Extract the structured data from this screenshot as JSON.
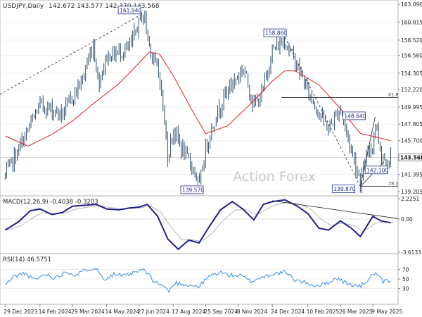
{
  "chart_data": [
    {
      "type": "candlestick",
      "title": "USDJPY,Daily",
      "symbol": "USDJPY",
      "timeframe": "Daily",
      "ohlc": {
        "open": 142.672,
        "high": 143.577,
        "low": 142.37,
        "close": 143.568
      },
      "header_values": "142.672 143.577 142.370 143.568",
      "ylim": [
        139.205,
        163.09
      ],
      "yticks": [
        "163.090",
        "160.815",
        "158.520",
        "156.560",
        "154.305",
        "152.220",
        "149.995",
        "147.805",
        "145.700",
        "143.568",
        "141.395",
        "139.205"
      ],
      "last_price": "143.568",
      "watermark": "Action Forex",
      "xticks": [
        "29 Dec 2023",
        "14 Feb 2024",
        "29 Mar 2024",
        "14 May 2024",
        "27 Jun 2024",
        "12 Aug 2024",
        "25 Sep 2024",
        "8 Nov 2024",
        "24 Dec 2024",
        "10 Feb 2025",
        "26 Mar 2025",
        "9 May 2025"
      ],
      "key_points": [
        {
          "label": "161.940",
          "date": "2024-07-03",
          "value": 161.94
        },
        {
          "label": "139.570",
          "date": "2024-09-16",
          "value": 139.57
        },
        {
          "label": "158.860",
          "date": "2025-01-10",
          "value": 158.86
        },
        {
          "label": "139.870",
          "date": "2025-04-22",
          "value": 139.87
        },
        {
          "label": "148.640",
          "date": "2025-05-12",
          "value": 148.64
        },
        {
          "label": "142.100",
          "date": "2025-05-27",
          "value": 142.1
        }
      ],
      "fib_levels": [
        {
          "label": "61.8",
          "value": 151.2
        },
        {
          "label": "38.2",
          "value": 139.87
        }
      ],
      "close_series": {
        "dates": [
          "2023-12-29",
          "2024-01-12",
          "2024-01-29",
          "2024-02-14",
          "2024-03-01",
          "2024-03-15",
          "2024-03-29",
          "2024-04-10",
          "2024-04-26",
          "2024-05-03",
          "2024-05-14",
          "2024-05-31",
          "2024-06-14",
          "2024-06-27",
          "2024-07-03",
          "2024-07-11",
          "2024-07-25",
          "2024-08-05",
          "2024-08-12",
          "2024-08-26",
          "2024-09-10",
          "2024-09-16",
          "2024-09-25",
          "2024-10-10",
          "2024-10-25",
          "2024-11-08",
          "2024-11-15",
          "2024-11-29",
          "2024-12-10",
          "2024-12-24",
          "2025-01-10",
          "2025-01-24",
          "2025-02-10",
          "2025-02-25",
          "2025-03-10",
          "2025-03-26",
          "2025-04-04",
          "2025-04-22",
          "2025-05-01",
          "2025-05-09",
          "2025-05-12",
          "2025-05-20",
          "2025-05-27",
          "2025-06-02"
        ],
        "values": [
          141.2,
          143.8,
          147.1,
          150.3,
          149.7,
          149.0,
          151.3,
          153.2,
          158.0,
          153.0,
          156.4,
          157.0,
          157.5,
          160.8,
          161.9,
          157.8,
          153.8,
          143.5,
          147.2,
          144.2,
          141.9,
          139.6,
          144.8,
          149.2,
          152.3,
          154.0,
          155.0,
          150.2,
          151.6,
          157.2,
          158.5,
          155.8,
          152.0,
          149.3,
          147.2,
          149.9,
          146.5,
          140.5,
          143.6,
          145.3,
          148.3,
          144.0,
          143.0,
          143.6
        ]
      },
      "ma_series": {
        "dates": [
          "2023-12-29",
          "2024-01-29",
          "2024-03-01",
          "2024-03-29",
          "2024-04-26",
          "2024-05-31",
          "2024-06-27",
          "2024-07-11",
          "2024-07-25",
          "2024-08-12",
          "2024-09-10",
          "2024-09-25",
          "2024-10-25",
          "2024-11-29",
          "2024-12-24",
          "2025-01-10",
          "2025-01-24",
          "2025-02-25",
          "2025-03-26",
          "2025-04-22",
          "2025-05-12",
          "2025-06-02"
        ],
        "values": [
          146.3,
          145.0,
          146.5,
          148.2,
          150.4,
          153.0,
          155.6,
          157.0,
          156.7,
          154.0,
          149.0,
          146.6,
          147.6,
          150.8,
          153.3,
          154.6,
          154.6,
          152.8,
          149.8,
          146.6,
          146.2,
          145.7
        ]
      }
    },
    {
      "type": "line",
      "title": "MACD(12,26,9) -0.4038 -0.3203",
      "name": "MACD(12,26,9)",
      "values_text": "-0.4038 -0.3203",
      "ylim": [
        -3.6133,
        2.2251
      ],
      "yticks": [
        "2.2251",
        "0.00",
        "-3.6133"
      ],
      "series": [
        {
          "dates": [
            "2023-12-29",
            "2024-01-16",
            "2024-02-01",
            "2024-02-14",
            "2024-03-01",
            "2024-03-15",
            "2024-03-29",
            "2024-04-15",
            "2024-04-30",
            "2024-05-14",
            "2024-05-31",
            "2024-06-14",
            "2024-06-27",
            "2024-07-08",
            "2024-07-22",
            "2024-08-05",
            "2024-08-19",
            "2024-09-02",
            "2024-09-16",
            "2024-09-30",
            "2024-10-15",
            "2024-10-31",
            "2024-11-14",
            "2024-11-29",
            "2024-12-12",
            "2024-12-24",
            "2025-01-10",
            "2025-01-27",
            "2025-02-10",
            "2025-02-25",
            "2025-03-10",
            "2025-03-26",
            "2025-04-10",
            "2025-04-22",
            "2025-05-09",
            "2025-05-20",
            "2025-06-02"
          ],
          "values": [
            -1.2,
            -0.3,
            0.9,
            1.1,
            0.5,
            0.7,
            1.4,
            1.5,
            1.6,
            1.1,
            1.0,
            1.2,
            1.3,
            1.6,
            0.3,
            -2.2,
            -3.3,
            -2.3,
            -2.6,
            -0.8,
            1.0,
            1.9,
            1.1,
            -0.1,
            1.6,
            1.9,
            2.1,
            1.4,
            0.6,
            -1.0,
            -1.2,
            -0.2,
            -1.0,
            -1.9,
            0.3,
            -0.2,
            -0.4
          ]
        }
      ]
    },
    {
      "type": "line",
      "title": "RSI(14) 46.5751",
      "name": "RSI(14)",
      "values_text": "46.5751",
      "ylim": [
        0,
        100
      ],
      "yticks": [
        "70",
        "50",
        "30"
      ],
      "series": [
        {
          "dates": [
            "2023-12-29",
            "2024-01-10",
            "2024-01-24",
            "2024-02-07",
            "2024-02-21",
            "2024-03-06",
            "2024-03-20",
            "2024-04-03",
            "2024-04-17",
            "2024-04-29",
            "2024-05-10",
            "2024-05-24",
            "2024-06-07",
            "2024-06-21",
            "2024-07-03",
            "2024-07-17",
            "2024-07-31",
            "2024-08-05",
            "2024-08-16",
            "2024-08-30",
            "2024-09-16",
            "2024-09-30",
            "2024-10-14",
            "2024-10-28",
            "2024-11-11",
            "2024-11-25",
            "2024-12-09",
            "2024-12-23",
            "2025-01-10",
            "2025-01-24",
            "2025-02-07",
            "2025-02-21",
            "2025-03-07",
            "2025-03-21",
            "2025-04-04",
            "2025-04-22",
            "2025-05-05",
            "2025-05-12",
            "2025-05-22",
            "2025-06-02"
          ],
          "values": [
            38,
            55,
            62,
            48,
            60,
            52,
            66,
            58,
            70,
            74,
            50,
            60,
            56,
            63,
            70,
            45,
            35,
            24,
            42,
            38,
            34,
            56,
            64,
            58,
            57,
            45,
            53,
            60,
            64,
            48,
            42,
            36,
            40,
            52,
            40,
            34,
            52,
            64,
            44,
            46.6
          ]
        }
      ]
    }
  ]
}
